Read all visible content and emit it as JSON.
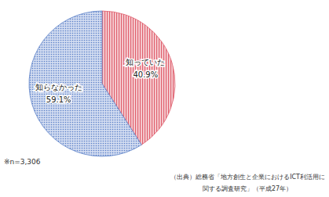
{
  "chart_data": {
    "type": "pie",
    "categories": [
      "知っていた",
      "知らなかった"
    ],
    "values": [
      40.9,
      59.1
    ],
    "value_labels": [
      "40.9%",
      "59.1%"
    ],
    "colors": [
      "#e0606e",
      "#5a80c8"
    ],
    "data_labels": true,
    "annotations": [
      "※n=3,306",
      "（出典）総務省「地方創生と企業におけるICT利活用に",
      "関する調査研究」（平成27年）"
    ]
  }
}
